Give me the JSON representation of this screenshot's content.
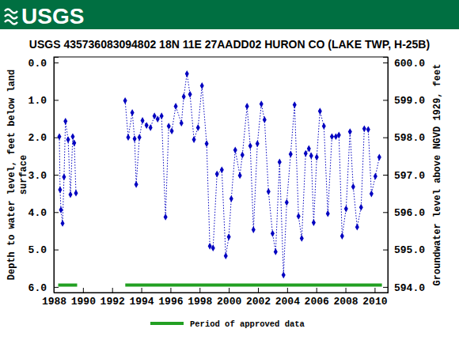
{
  "header": {
    "logo": "USGS"
  },
  "chart_data": {
    "type": "line",
    "title": "USGS 435736083094802 18N 11E 27AADD02 HURON CO (LAKE TWP, H-25B)",
    "ylabel": [
      "Depth to water level, feet below land",
      "surface"
    ],
    "y2label": "Groundwater level above NGVD 1929, feet",
    "xlim": [
      1988,
      2010.9
    ],
    "xticks": [
      1988,
      1990,
      1992,
      1994,
      1996,
      1998,
      2000,
      2002,
      2004,
      2006,
      2008,
      2010
    ],
    "ylim": [
      -0.15,
      6.15
    ],
    "yticks": [
      {
        "value": 0,
        "label": "0.0"
      },
      {
        "value": 1,
        "label": "1.0"
      },
      {
        "value": 2,
        "label": "2.0"
      },
      {
        "value": 3,
        "label": "3.0"
      },
      {
        "value": 4,
        "label": "4.0"
      },
      {
        "value": 5,
        "label": "5.0"
      },
      {
        "value": 6,
        "label": "6.0"
      }
    ],
    "y2lim": [
      600.15,
      593.85
    ],
    "y2ticks": [
      {
        "value": 600,
        "label": "600.0"
      },
      {
        "value": 599,
        "label": "599.0"
      },
      {
        "value": 598,
        "label": "598.0"
      },
      {
        "value": 597,
        "label": "597.0"
      },
      {
        "value": 596,
        "label": "596.0"
      },
      {
        "value": 595,
        "label": "595.0"
      },
      {
        "value": 594,
        "label": "594.0"
      }
    ],
    "grid": false,
    "legend": "bottom",
    "series": [
      {
        "type": "line",
        "color": "#0000c0",
        "marker": "diamond",
        "line_style": "dotted",
        "x": [
          1988.38,
          1988.43,
          1988.49,
          1988.6,
          1988.7,
          1988.8,
          1988.98,
          1989.14,
          1989.3,
          1989.4,
          1989.52,
          null,
          1992.89,
          1993.1,
          1993.38,
          1993.54,
          1993.65,
          1993.87,
          1994.08,
          1994.36,
          1994.63,
          1994.9,
          1995.12,
          1995.39,
          1995.66,
          1995.88,
          1996.09,
          1996.36,
          1996.75,
          1996.91,
          1997.13,
          1997.34,
          1997.61,
          1997.89,
          1998.16,
          1998.48,
          1998.7,
          1998.92,
          1999.19,
          1999.52,
          1999.79,
          2000.0,
          2000.17,
          2000.44,
          2000.76,
          2000.93,
          2001.25,
          2001.47,
          2001.69,
          2001.96,
          2002.23,
          2002.45,
          2002.72,
          2003.0,
          2003.21,
          2003.48,
          2003.75,
          2003.97,
          2004.24,
          2004.51,
          2004.78,
          2005.0,
          2005.27,
          2005.49,
          2005.65,
          2005.82,
          2006.03,
          2006.25,
          2006.52,
          2006.79,
          2007.07,
          2007.34,
          2007.55,
          2007.77,
          2008.04,
          2008.31,
          2008.53,
          2008.8,
          2009.07,
          2009.29,
          2009.56,
          2009.78,
          2010.05,
          2010.32
        ],
        "values": [
          1.98,
          3.4,
          3.94,
          4.3,
          3.06,
          1.57,
          2.06,
          3.53,
          1.98,
          2.15,
          3.49,
          null,
          1.02,
          2.0,
          1.34,
          2.04,
          3.26,
          2.0,
          1.55,
          1.68,
          1.74,
          1.43,
          1.51,
          1.43,
          4.13,
          1.7,
          1.83,
          1.17,
          1.62,
          0.91,
          0.3,
          0.85,
          2.06,
          1.74,
          0.62,
          2.17,
          4.91,
          4.96,
          2.98,
          2.87,
          5.17,
          4.66,
          3.64,
          2.34,
          3.02,
          2.47,
          1.17,
          2.23,
          4.47,
          2.17,
          1.11,
          1.53,
          3.45,
          4.57,
          5.06,
          2.66,
          5.68,
          3.74,
          2.45,
          1.13,
          4.11,
          4.7,
          2.43,
          2.3,
          2.49,
          4.28,
          2.53,
          1.3,
          1.7,
          4.04,
          1.98,
          1.98,
          1.94,
          4.64,
          3.91,
          1.85,
          3.32,
          4.4,
          3.87,
          1.77,
          1.79,
          3.51,
          3.04,
          2.53
        ]
      },
      {
        "name": "Period of approved data",
        "type": "segment",
        "color": "#22a022",
        "x_start": [
          1988.3,
          1992.9
        ],
        "x_end": [
          1989.6,
          2010.5
        ],
        "values": [
          5.95,
          5.95
        ]
      }
    ]
  }
}
